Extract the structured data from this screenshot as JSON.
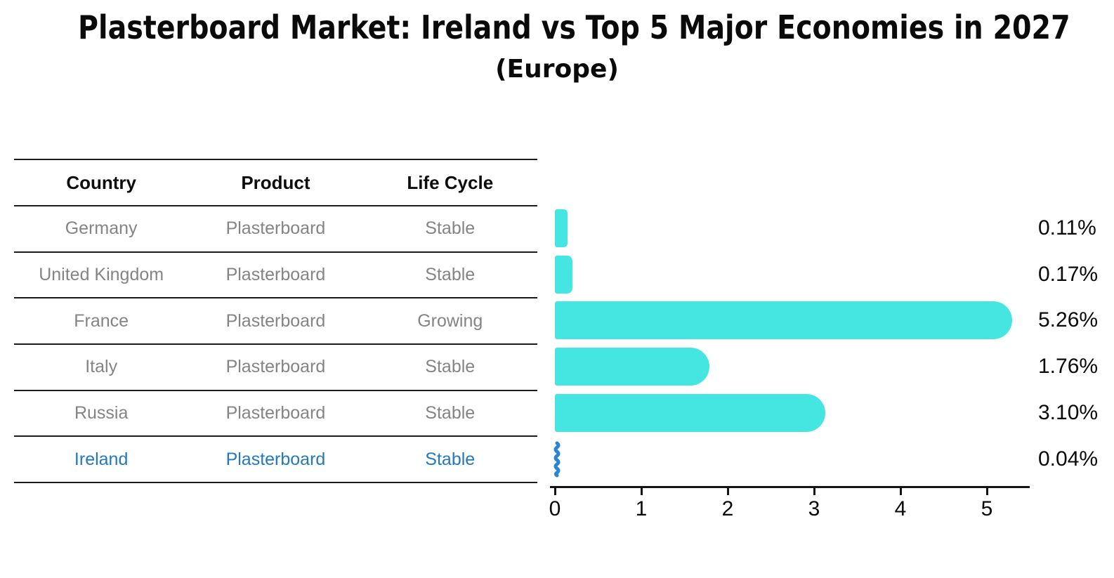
{
  "title": "Plasterboard Market: Ireland vs Top 5 Major Economies in 2027",
  "subtitle": "(Europe)",
  "table": {
    "headers": [
      "Country",
      "Product",
      "Life Cycle"
    ],
    "rows": [
      {
        "country": "Germany",
        "product": "Plasterboard",
        "life_cycle": "Stable",
        "highlighted": false
      },
      {
        "country": "United Kingdom",
        "product": "Plasterboard",
        "life_cycle": "Stable",
        "highlighted": false
      },
      {
        "country": "France",
        "product": "Plasterboard",
        "life_cycle": "Growing",
        "highlighted": false
      },
      {
        "country": "Italy",
        "product": "Plasterboard",
        "life_cycle": "Stable",
        "highlighted": false
      },
      {
        "country": "Russia",
        "product": "Plasterboard",
        "life_cycle": "Stable",
        "highlighted": false
      },
      {
        "country": "Ireland",
        "product": "Plasterboard",
        "life_cycle": "Stable",
        "highlighted": true
      }
    ]
  },
  "chart_data": {
    "type": "bar",
    "orientation": "horizontal",
    "title": "Plasterboard Market: Ireland vs Top 5 Major Economies in 2027",
    "subtitle": "(Europe)",
    "categories": [
      "Germany",
      "United Kingdom",
      "France",
      "Italy",
      "Russia",
      "Ireland"
    ],
    "values": [
      0.11,
      0.17,
      5.26,
      1.76,
      3.1,
      0.04
    ],
    "value_labels": [
      "0.11%",
      "0.17%",
      "5.26%",
      "1.76%",
      "3.10%",
      "0.04%"
    ],
    "x_ticks": [
      "0",
      "1",
      "2",
      "3",
      "4",
      "5"
    ],
    "xlim": [
      0,
      5.5
    ],
    "xlabel": "",
    "ylabel": "",
    "grid": false,
    "legend": false,
    "bar_color": "#45e6e2",
    "highlight_index": 5,
    "highlight_bar_color": "#2b83d4",
    "row_text_color": "#848484",
    "highlight_text_color": "#2479bd",
    "axis_color": "#141414"
  }
}
